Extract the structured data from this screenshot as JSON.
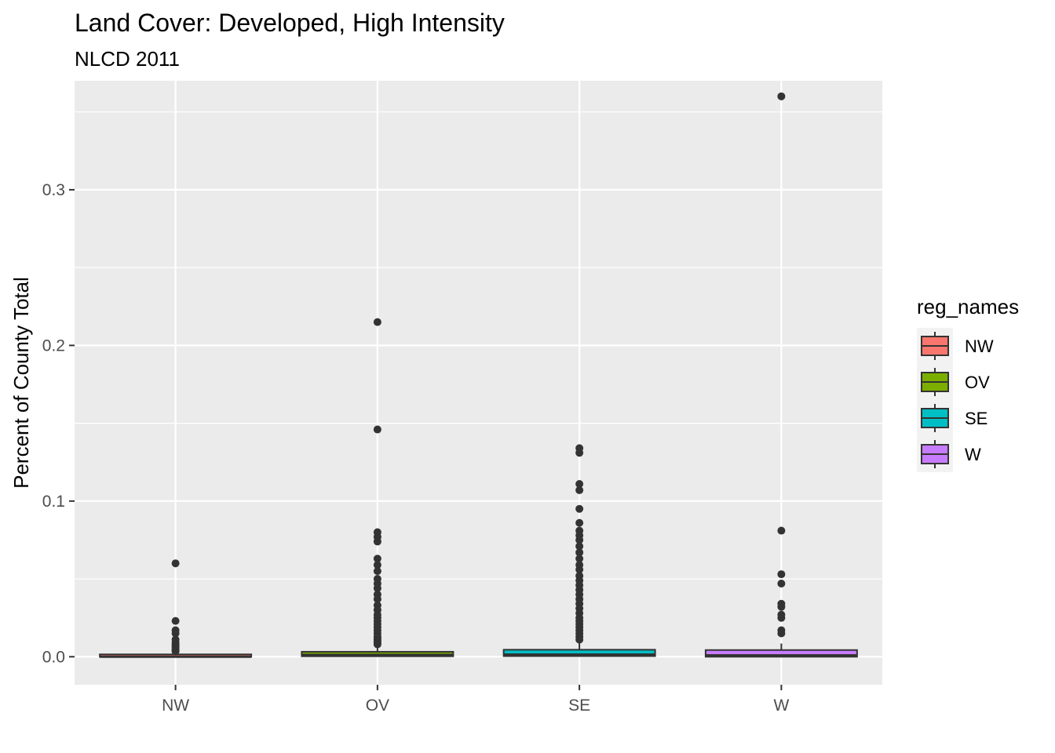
{
  "chart_data": {
    "type": "boxplot",
    "title": "Land Cover: Developed, High Intensity",
    "subtitle": "NLCD 2011",
    "xlabel": "",
    "ylabel": "Percent of County Total",
    "ylim": [
      -0.018,
      0.37
    ],
    "y_ticks": [
      "0.0",
      "0.1",
      "0.2",
      "0.3"
    ],
    "y_tick_values": [
      0.0,
      0.1,
      0.2,
      0.3
    ],
    "categories": [
      "NW",
      "OV",
      "SE",
      "W"
    ],
    "grid": true,
    "legend": {
      "title": "reg_names",
      "position": "right"
    },
    "series": [
      {
        "name": "NW",
        "color": "#F8766D",
        "q1": 0.0,
        "median": 0.0,
        "q3": 0.0005,
        "whisker_low": 0.0,
        "whisker_high": 0.0012,
        "outliers": [
          0.06,
          0.023,
          0.017,
          0.015,
          0.011,
          0.009,
          0.008,
          0.007,
          0.006,
          0.005,
          0.004,
          0.0035
        ]
      },
      {
        "name": "OV",
        "color": "#7CAE00",
        "q1": 0.0003,
        "median": 0.0012,
        "q3": 0.0032,
        "whisker_low": 0.0,
        "whisker_high": 0.0078,
        "outliers": [
          0.215,
          0.146,
          0.08,
          0.077,
          0.074,
          0.063,
          0.059,
          0.055,
          0.05,
          0.047,
          0.044,
          0.04,
          0.037,
          0.033,
          0.03,
          0.027,
          0.025,
          0.023,
          0.021,
          0.019,
          0.017,
          0.015,
          0.013,
          0.012,
          0.011,
          0.01,
          0.009,
          0.008
        ]
      },
      {
        "name": "SE",
        "color": "#00BFC4",
        "q1": 0.0004,
        "median": 0.0014,
        "q3": 0.0045,
        "whisker_low": 0.0,
        "whisker_high": 0.0105,
        "outliers": [
          0.134,
          0.131,
          0.111,
          0.107,
          0.095,
          0.086,
          0.081,
          0.078,
          0.075,
          0.071,
          0.067,
          0.063,
          0.059,
          0.056,
          0.052,
          0.049,
          0.046,
          0.043,
          0.04,
          0.037,
          0.034,
          0.031,
          0.028,
          0.025,
          0.023,
          0.021,
          0.019,
          0.017,
          0.015,
          0.013,
          0.011
        ]
      },
      {
        "name": "W",
        "color": "#C77CFF",
        "q1": 0.0,
        "median": 0.0009,
        "q3": 0.0043,
        "whisker_low": 0.0,
        "whisker_high": 0.0085,
        "outliers": [
          0.36,
          0.081,
          0.053,
          0.047,
          0.034,
          0.032,
          0.027,
          0.025,
          0.017,
          0.015
        ]
      }
    ]
  }
}
